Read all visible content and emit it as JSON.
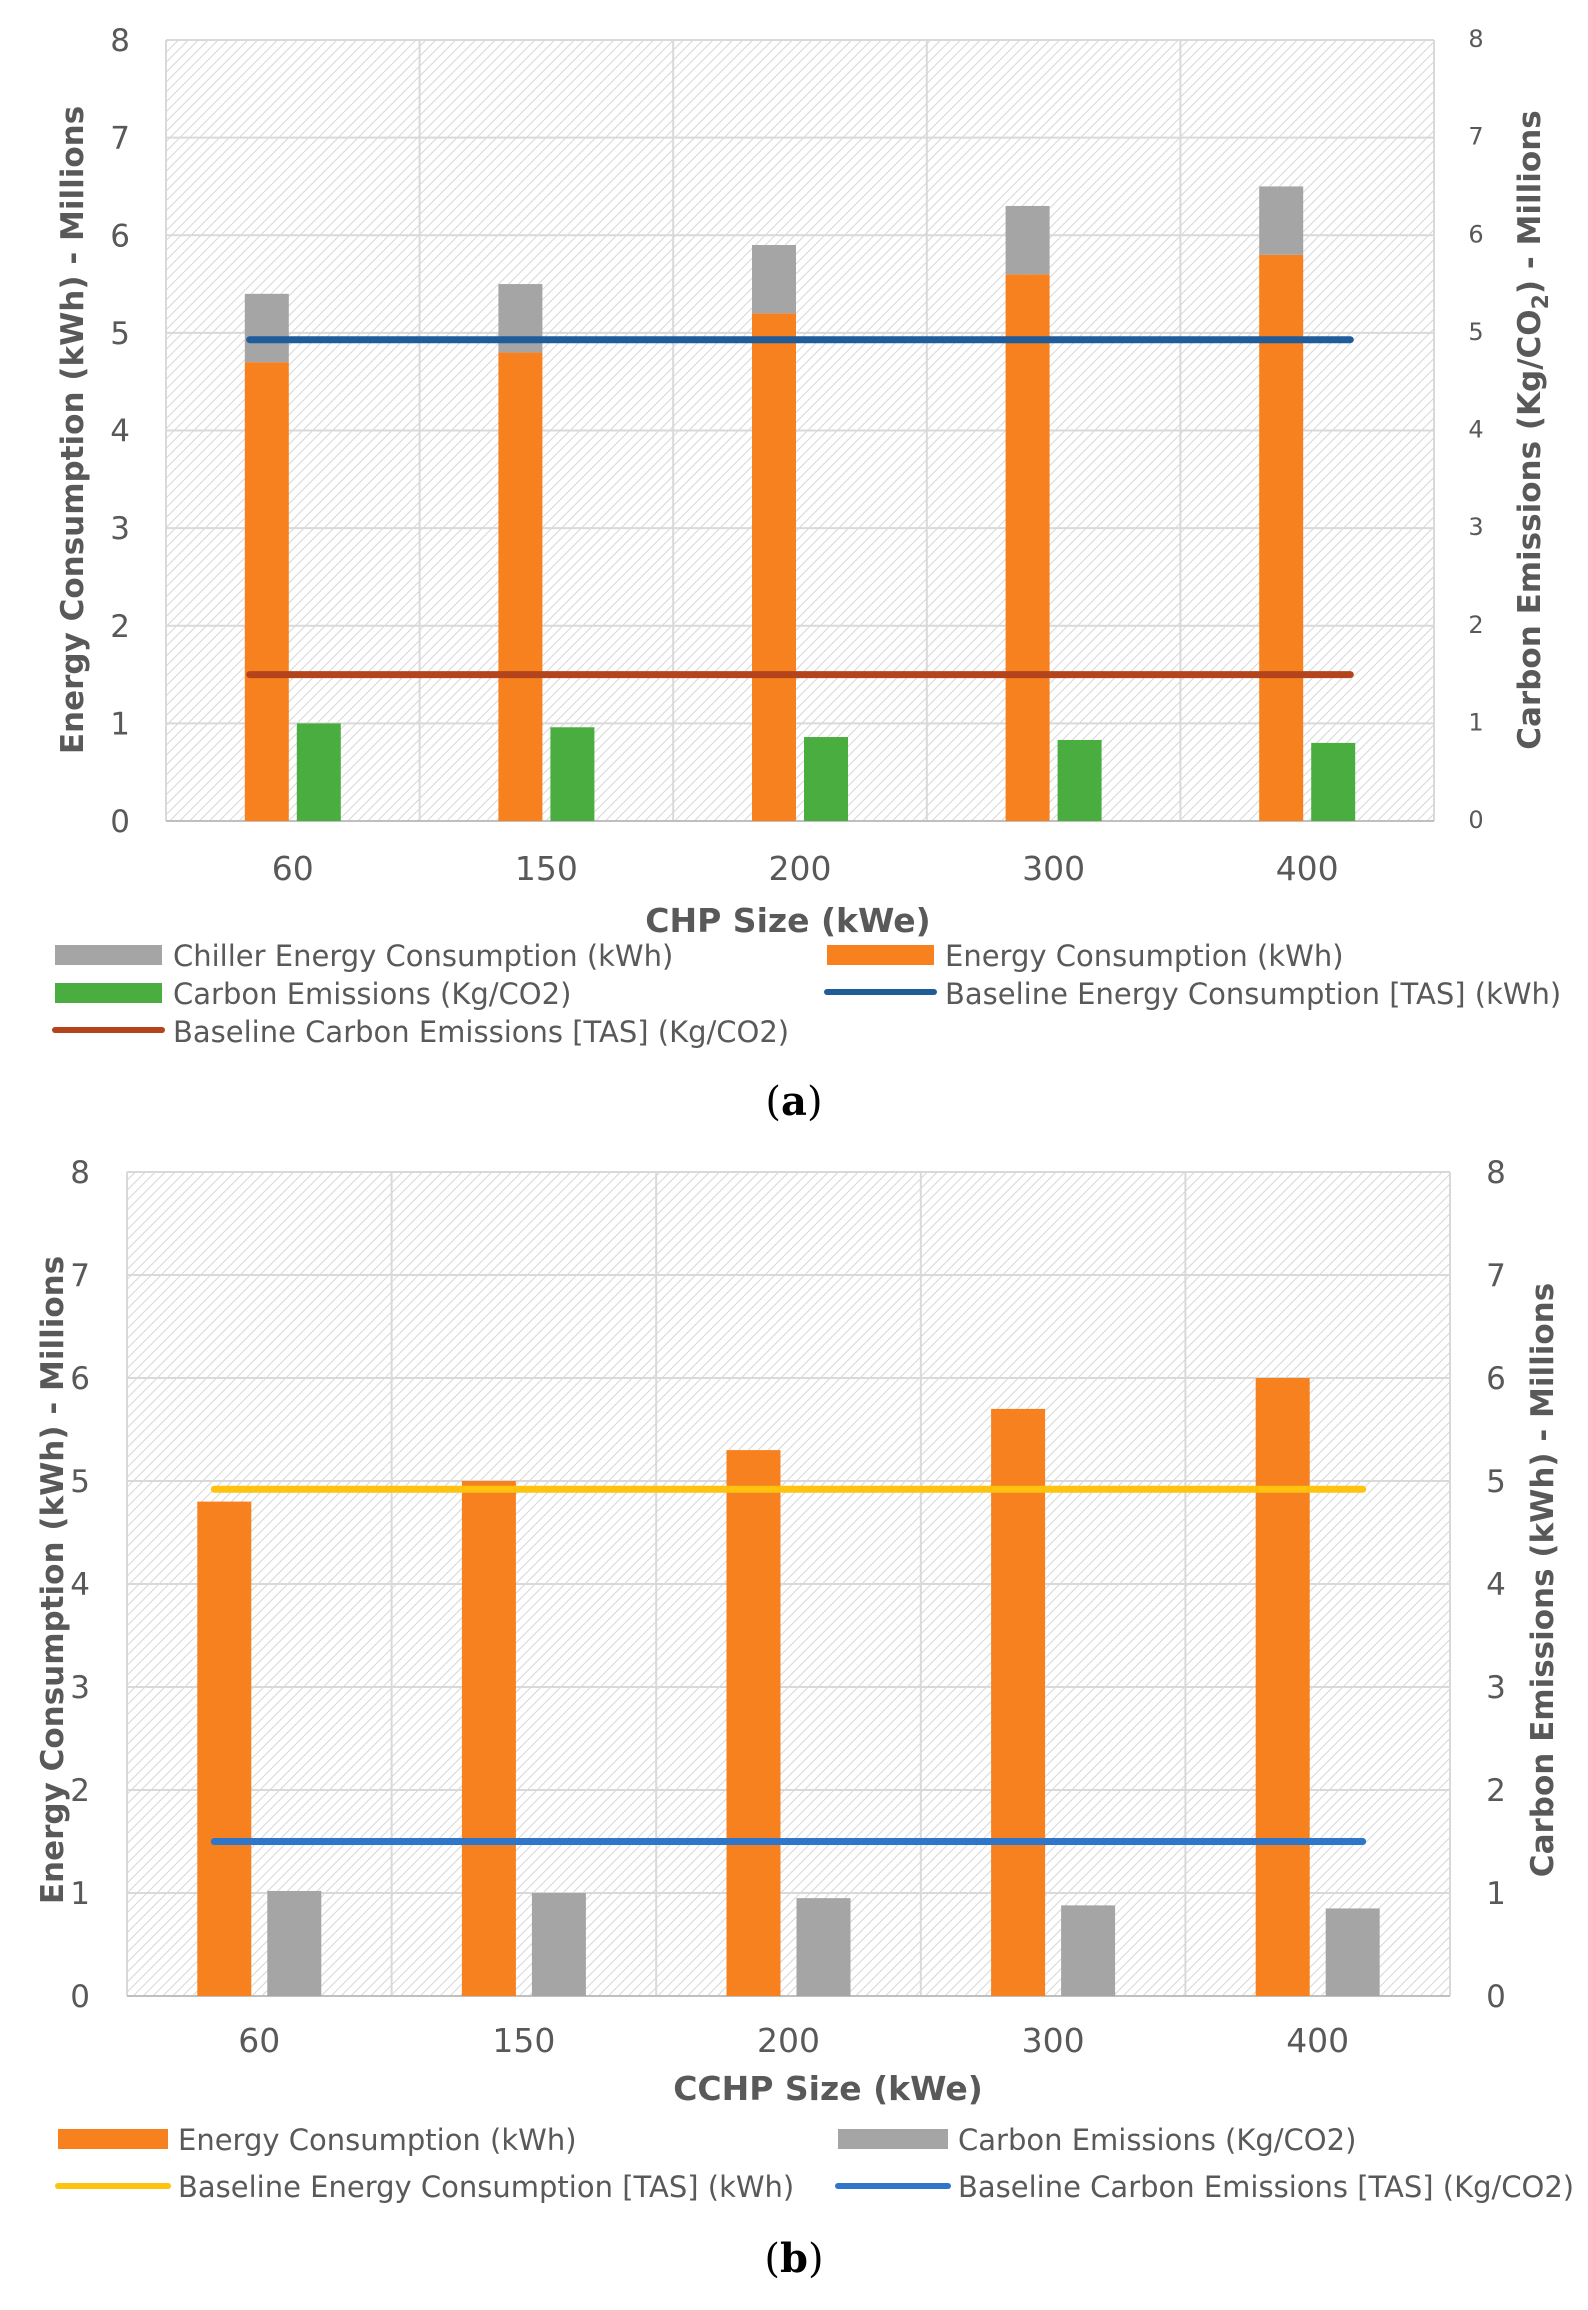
{
  "chart_data": [
    {
      "type": "bar",
      "caption": "a",
      "categories": [
        "60",
        "150",
        "200",
        "300",
        "400"
      ],
      "xlabel": "CHP Size (kWe)",
      "ylabel": "Energy Consumption (kWh) - Millions",
      "ylabel2_parts": [
        "Carbon Emissions (Kg/CO",
        "2",
        ") - Millions"
      ],
      "ylim": [
        0,
        8
      ],
      "y2lim": [
        0,
        8
      ],
      "yticks": [
        "0",
        "1",
        "2",
        "3",
        "4",
        "5",
        "6",
        "7",
        "8"
      ],
      "series": [
        {
          "name": "Chiller Energy Consumption (kWh)",
          "kind": "bar-stacked-top",
          "color": "#a5a5a5",
          "values": [
            0.7,
            0.7,
            0.7,
            0.7,
            0.7
          ]
        },
        {
          "name": "Energy Consumption (kWh)",
          "kind": "bar",
          "color": "#f7801f",
          "values": [
            4.7,
            4.8,
            5.2,
            5.6,
            5.8
          ]
        },
        {
          "name": "Carbon Emissions (Kg/CO2)",
          "kind": "bar",
          "color": "#4aad3f",
          "values": [
            1.0,
            0.96,
            0.86,
            0.83,
            0.8
          ]
        },
        {
          "name": "Baseline Energy Consumption [TAS] (kWh)",
          "kind": "line",
          "color": "#1f5c99",
          "values": [
            4.93,
            4.93,
            4.93,
            4.93,
            4.93
          ]
        },
        {
          "name": "Baseline Carbon Emissions [TAS] (Kg/CO2)",
          "kind": "line",
          "color": "#b3441c",
          "values": [
            1.5,
            1.5,
            1.5,
            1.5,
            1.5
          ]
        }
      ]
    },
    {
      "type": "bar",
      "caption": "b",
      "categories": [
        "60",
        "150",
        "200",
        "300",
        "400"
      ],
      "xlabel": "CCHP Size (kWe)",
      "ylabel": "Energy Consumption (kWh) - Millions",
      "ylabel2_parts": [
        "Carbon Emissions (kWh) - Millions",
        "",
        ""
      ],
      "ylim": [
        0,
        8
      ],
      "y2lim": [
        0,
        8
      ],
      "yticks": [
        "0",
        "1",
        "2",
        "3",
        "4",
        "5",
        "6",
        "7",
        "8"
      ],
      "series": [
        {
          "name": "Energy Consumption (kWh)",
          "kind": "bar",
          "color": "#f7801f",
          "values": [
            4.8,
            5.0,
            5.3,
            5.7,
            6.0
          ]
        },
        {
          "name": "Carbon Emissions (Kg/CO2)",
          "kind": "bar",
          "color": "#a5a5a5",
          "values": [
            1.02,
            1.0,
            0.95,
            0.88,
            0.85
          ]
        },
        {
          "name": "Baseline Energy Consumption [TAS] (kWh)",
          "kind": "line",
          "color": "#ffc20e",
          "values": [
            4.92,
            4.92,
            4.92,
            4.92,
            4.92
          ]
        },
        {
          "name": "Baseline Carbon Emissions [TAS] (Kg/CO2)",
          "kind": "line",
          "color": "#2f75c8",
          "values": [
            1.5,
            1.5,
            1.5,
            1.5,
            1.5
          ]
        }
      ]
    }
  ]
}
